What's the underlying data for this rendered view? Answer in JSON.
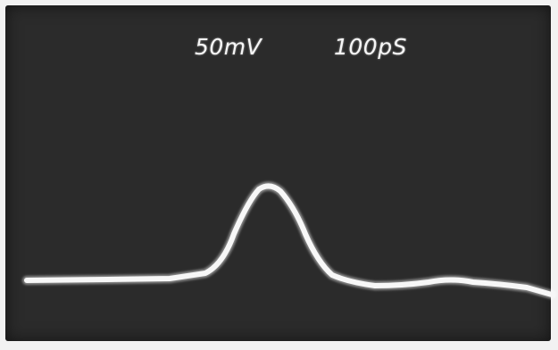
{
  "scope": {
    "volts_per_div": "50mV",
    "time_per_div": "100pS"
  },
  "colors": {
    "screen": "#2b2b2b",
    "trace": "#f7f7f7",
    "frame": "#f2f2f2"
  }
}
